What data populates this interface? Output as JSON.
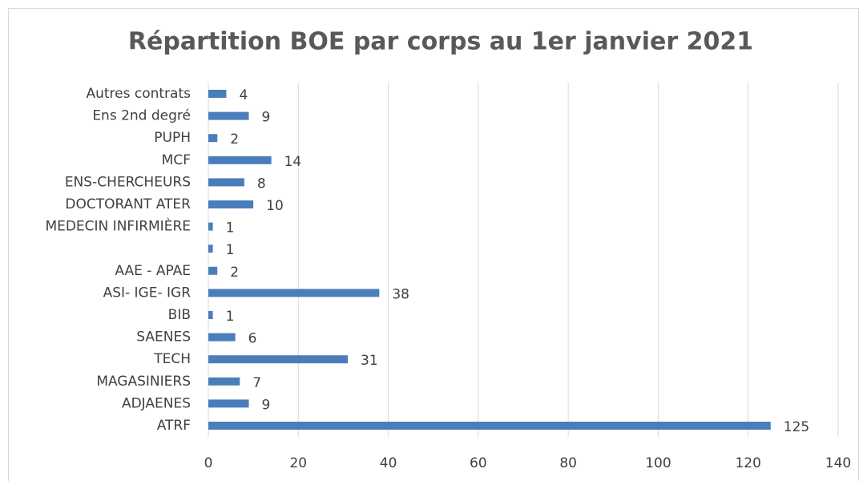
{
  "chart_data": {
    "type": "hbar",
    "title": "Répartition BOE par corps au 1er janvier 2021",
    "categories": [
      "ATRF",
      "ADJAENES",
      "MAGASINIERS",
      "TECH",
      "SAENES",
      "BIB",
      "ASI- IGE- IGR",
      "AAE - APAE",
      null,
      "MEDECIN INFIRMIÈRE",
      "DOCTORANT ATER",
      "ENS-CHERCHEURS",
      "MCF",
      "PUPH",
      "Ens 2nd degré",
      "Autres contrats"
    ],
    "values": [
      125,
      9,
      7,
      31,
      6,
      1,
      38,
      2,
      1,
      1,
      10,
      8,
      14,
      2,
      9,
      4
    ],
    "color": "#4a7ebb",
    "xlim": [
      0,
      140
    ],
    "xticks": [
      0,
      20,
      40,
      60,
      80,
      100,
      120,
      140
    ],
    "grid": true
  }
}
